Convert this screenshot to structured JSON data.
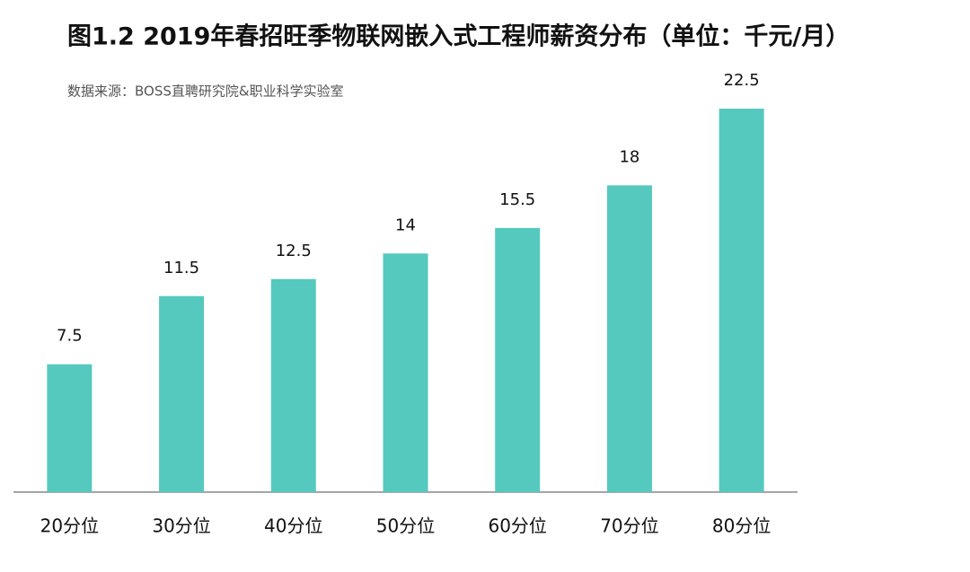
{
  "chart_data": {
    "type": "bar",
    "title": "图1.2  2019年春招旺季物联网嵌入式工程师薪资分布（单位：千元/月）",
    "subtitle": "数据来源：BOSS直聘研究院&职业科学实验室",
    "categories": [
      "20分位",
      "30分位",
      "40分位",
      "50分位",
      "60分位",
      "70分位",
      "80分位"
    ],
    "values": [
      7.5,
      11.5,
      12.5,
      14,
      15.5,
      18,
      22.5
    ],
    "color": "#55c9be",
    "ylim": [
      0,
      22.5
    ]
  }
}
